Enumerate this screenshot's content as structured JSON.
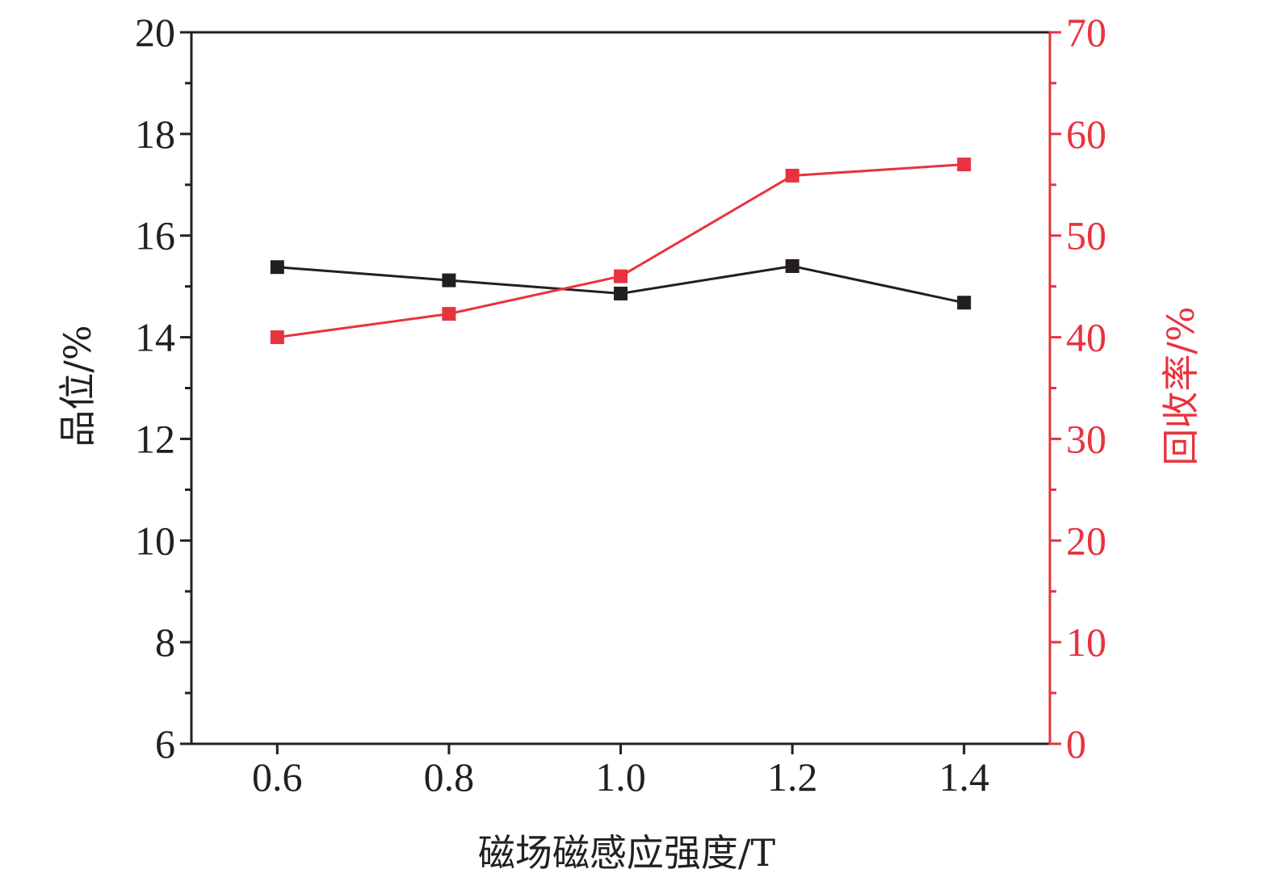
{
  "chart_data": {
    "type": "line",
    "title": "",
    "xlabel": "磁场磁感应强度/T",
    "ylabel_left": "品位/%",
    "ylabel_right": "回收率/%",
    "x": [
      0.6,
      0.8,
      1.0,
      1.2,
      1.4
    ],
    "x_ticks": [
      "0.6",
      "0.8",
      "1.0",
      "1.2",
      "1.4"
    ],
    "xlim": [
      0.5,
      1.5
    ],
    "ylim_left": [
      6,
      20
    ],
    "y_ticks_left": [
      "6",
      "8",
      "10",
      "12",
      "14",
      "16",
      "18",
      "20"
    ],
    "ylim_right": [
      0,
      70
    ],
    "y_ticks_right": [
      "0",
      "10",
      "20",
      "30",
      "40",
      "50",
      "60",
      "70"
    ],
    "grid": false,
    "legend": "none",
    "series": [
      {
        "axis": "left",
        "color": "#231f20",
        "marker": "square",
        "values": [
          15.38,
          15.12,
          14.86,
          15.4,
          14.68
        ]
      },
      {
        "axis": "right",
        "color": "#e8333f",
        "marker": "square",
        "values": [
          40.0,
          42.3,
          46.0,
          55.9,
          57.0
        ]
      }
    ]
  },
  "colors": {
    "axis_left": "#231f20",
    "axis_right": "#e8333f"
  }
}
